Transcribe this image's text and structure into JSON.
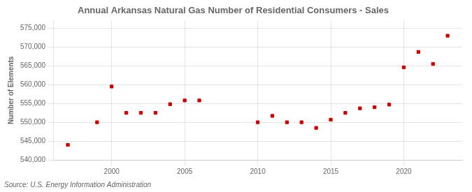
{
  "chart_data": {
    "type": "scatter",
    "title": "Annual Arkansas Natural Gas Number of Residential Consumers - Sales",
    "ylabel": "Number of Elements",
    "annotation": "Source: U.S. Energy Information Administration",
    "x": [
      1997,
      1999,
      2000,
      2001,
      2002,
      2003,
      2004,
      2005,
      2006,
      2010,
      2011,
      2012,
      2013,
      2014,
      2015,
      2016,
      2017,
      2018,
      2019,
      2020,
      2021,
      2022,
      2023
    ],
    "values": [
      544000,
      550000,
      559500,
      552500,
      552500,
      552500,
      554800,
      555800,
      555800,
      550000,
      551700,
      550000,
      550000,
      548500,
      550700,
      552500,
      553700,
      554000,
      554700,
      564600,
      568700,
      565500,
      573000
    ],
    "color": "#cc0000",
    "marker": "square",
    "xlim": [
      1996,
      2024
    ],
    "xticks": [
      2000,
      2005,
      2010,
      2015,
      2020
    ],
    "ylim": [
      540000,
      577000
    ],
    "yticks": [
      {
        "value": 540000,
        "label": "540,000"
      },
      {
        "value": 545000,
        "label": "545,000"
      },
      {
        "value": 550000,
        "label": "550,000"
      },
      {
        "value": 555000,
        "label": "555,000"
      },
      {
        "value": 560000,
        "label": "560,000"
      },
      {
        "value": 565000,
        "label": "565,000"
      },
      {
        "value": 570000,
        "label": "570,000"
      },
      {
        "value": 575000,
        "label": "575,000"
      }
    ],
    "grid": true
  }
}
